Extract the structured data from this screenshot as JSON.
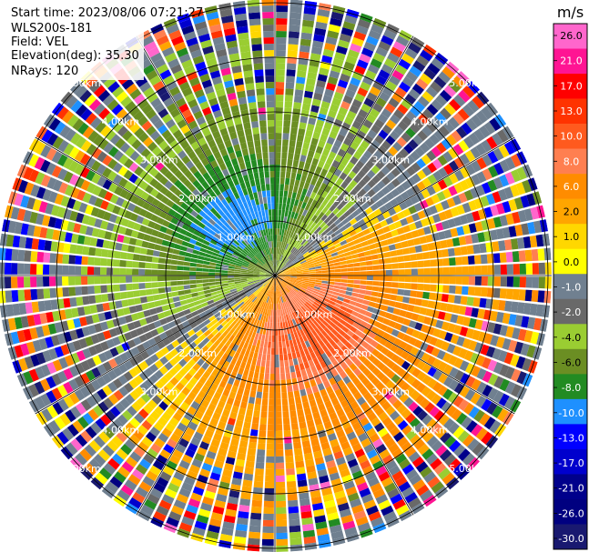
{
  "header": {
    "start_time": "Start time: 2023/08/06 07:21:27",
    "instrument": "WLS200s-181",
    "field": "Field: VEL",
    "elevation": "Elevation(deg): 35.30",
    "nrays": "NRays: 120"
  },
  "chart_data": {
    "type": "heatmap",
    "subtype": "polar-ppi",
    "field": "VEL",
    "units": "m/s",
    "n_rays": 120,
    "elevation_deg": 35.3,
    "max_range_km": 5.5,
    "range_rings_km": [
      1,
      2,
      3,
      4,
      5
    ],
    "range_ring_labels": [
      "1.00km",
      "2.00km",
      "3.00km",
      "4.00km",
      "5.00km"
    ],
    "spokes_deg": [
      0,
      30,
      60,
      90,
      120,
      150,
      180,
      210,
      240,
      270,
      300,
      330
    ],
    "colorbar": {
      "title": "m/s",
      "ticks": [
        "26.0",
        "21.0",
        "17.0",
        "13.0",
        "10.0",
        "8.0",
        "6.0",
        "2.0",
        "1.0",
        "0.0",
        "-1.0",
        "-2.0",
        "-4.0",
        "-6.0",
        "-8.0",
        "-10.0",
        "-13.0",
        "-17.0",
        "-21.0",
        "-26.0",
        "-30.0"
      ],
      "colors": [
        "#ff66cc",
        "#ff1493",
        "#ff0000",
        "#ff3300",
        "#ff5a1e",
        "#ff7f50",
        "#ff8c00",
        "#ffa500",
        "#ffd700",
        "#ffff00",
        "#708090",
        "#696969",
        "#9acd32",
        "#6b8e23",
        "#228b22",
        "#1e90ff",
        "#0000ff",
        "#0000cd",
        "#00008b",
        "#000080",
        "#191970"
      ]
    },
    "pattern_summary": "Outbound (positive) velocities to the south and east, peak about 10-13 m/s around 1.2 km south; inbound (negative) velocities to the north and west, peak about -8 m/s around 1 km north; noisy speckle beyond about 4 km."
  }
}
